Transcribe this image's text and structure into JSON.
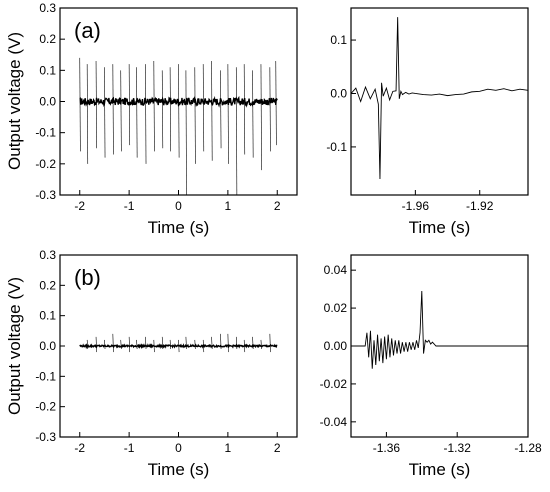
{
  "figure": {
    "ylabel_shared": "Output voltage (V)"
  },
  "chart_data": [
    {
      "id": "a-left",
      "type": "line",
      "panel_label": "(a)",
      "xlabel": "Time (s)",
      "ylabel": "Output voltage (V)",
      "xlim": [
        -2.4,
        2.4
      ],
      "ylim": [
        -0.3,
        0.3
      ],
      "xticks": [
        -2,
        -1,
        0,
        1,
        2
      ],
      "xtick_labels": [
        "-2",
        "-1",
        "0",
        "1",
        "2"
      ],
      "yticks": [
        -0.3,
        -0.2,
        -0.1,
        0.0,
        0.1,
        0.2,
        0.3
      ],
      "ytick_labels": [
        "-0.3",
        "-0.2",
        "-0.1",
        "0.0",
        "0.1",
        "0.2",
        "0.3"
      ],
      "grid": false,
      "series": [
        {
          "baseline_x": [
            -2.0,
            2.0
          ],
          "baseline_noise_amplitude": 0.012,
          "spike_x": [
            -2.0,
            -1.85,
            -1.67,
            -1.5,
            -1.33,
            -1.17,
            -1.0,
            -0.85,
            -0.67,
            -0.5,
            -0.33,
            -0.17,
            0.0,
            0.15,
            0.33,
            0.5,
            0.67,
            0.85,
            1.0,
            1.17,
            1.33,
            1.5,
            1.67,
            1.85,
            1.97
          ],
          "spike_max": [
            0.14,
            0.12,
            0.13,
            0.11,
            0.12,
            0.1,
            0.12,
            0.11,
            0.12,
            0.13,
            0.1,
            0.11,
            0.12,
            0.1,
            0.11,
            0.12,
            0.13,
            0.1,
            0.12,
            0.11,
            0.12,
            0.1,
            0.12,
            0.11,
            0.13
          ],
          "spike_min": [
            -0.16,
            -0.2,
            -0.15,
            -0.18,
            -0.17,
            -0.16,
            -0.14,
            -0.18,
            -0.2,
            -0.16,
            -0.15,
            -0.16,
            -0.18,
            -0.3,
            -0.2,
            -0.16,
            -0.19,
            -0.15,
            -0.2,
            -0.3,
            -0.17,
            -0.18,
            -0.22,
            -0.16,
            -0.14
          ]
        }
      ]
    },
    {
      "id": "a-right",
      "type": "line",
      "xlabel": "Time (s)",
      "xlim": [
        -2.0,
        -1.89
      ],
      "ylim": [
        -0.19,
        0.16
      ],
      "xticks": [
        -1.96,
        -1.92
      ],
      "xtick_labels": [
        "-1.96",
        "-1.92"
      ],
      "yticks": [
        -0.1,
        0.0,
        0.1
      ],
      "ytick_labels": [
        "-0.1",
        "0.0",
        "0.1"
      ],
      "grid": false,
      "series": [
        {
          "x": [
            -2.0,
            -1.997,
            -1.994,
            -1.991,
            -1.988,
            -1.985,
            -1.983,
            -1.982,
            -1.981,
            -1.98,
            -1.978,
            -1.976,
            -1.974,
            -1.972,
            -1.971,
            -1.97,
            -1.969,
            -1.968,
            -1.966,
            -1.964,
            -1.962,
            -1.96,
            -1.955,
            -1.95,
            -1.945,
            -1.94,
            -1.935,
            -1.93,
            -1.925,
            -1.92,
            -1.915,
            -1.91,
            -1.905,
            -1.9,
            -1.895,
            -1.89
          ],
          "y": [
            0.0,
            0.01,
            -0.015,
            0.012,
            -0.01,
            0.008,
            -0.02,
            -0.16,
            0.02,
            -0.005,
            0.01,
            -0.012,
            0.004,
            0.005,
            0.143,
            -0.01,
            0.004,
            -0.002,
            0.002,
            -0.001,
            0.001,
            0.0,
            -0.002,
            -0.003,
            -0.001,
            -0.004,
            -0.002,
            -0.001,
            0.003,
            0.004,
            0.008,
            0.006,
            0.009,
            0.005,
            0.008,
            0.006
          ]
        }
      ]
    },
    {
      "id": "b-left",
      "type": "line",
      "panel_label": "(b)",
      "xlabel": "Time (s)",
      "ylabel": "Output voltage (V)",
      "xlim": [
        -2.4,
        2.4
      ],
      "ylim": [
        -0.3,
        0.3
      ],
      "xticks": [
        -2,
        -1,
        0,
        1,
        2
      ],
      "xtick_labels": [
        "-2",
        "-1",
        "0",
        "1",
        "2"
      ],
      "yticks": [
        -0.3,
        -0.2,
        -0.1,
        0.0,
        0.1,
        0.2,
        0.3
      ],
      "ytick_labels": [
        "-0.3",
        "-0.2",
        "-0.1",
        "0.0",
        "0.1",
        "0.2",
        "0.3"
      ],
      "grid": false,
      "series": [
        {
          "baseline_x": [
            -2.0,
            2.0
          ],
          "baseline_noise_amplitude": 0.003,
          "spike_x": [
            -1.85,
            -1.67,
            -1.5,
            -1.33,
            -1.17,
            -1.0,
            -0.85,
            -0.67,
            -0.5,
            -0.33,
            -0.17,
            0.0,
            0.15,
            0.33,
            0.5,
            0.67,
            0.85,
            1.0,
            1.17,
            1.33,
            1.5,
            1.67,
            1.85
          ],
          "spike_max": [
            0.02,
            0.03,
            0.02,
            0.04,
            0.02,
            0.03,
            0.02,
            0.03,
            0.02,
            0.03,
            0.02,
            0.02,
            0.03,
            0.02,
            0.02,
            0.03,
            0.04,
            0.04,
            0.03,
            0.02,
            0.03,
            0.02,
            0.04
          ],
          "spike_min": [
            -0.01,
            -0.02,
            -0.01,
            -0.02,
            -0.01,
            -0.02,
            -0.01,
            -0.01,
            -0.02,
            -0.01,
            -0.01,
            -0.02,
            -0.01,
            -0.01,
            -0.02,
            -0.01,
            -0.01,
            -0.02,
            -0.01,
            -0.02,
            -0.01,
            -0.01,
            -0.02
          ]
        }
      ]
    },
    {
      "id": "b-right",
      "type": "line",
      "xlabel": "Time (s)",
      "xlim": [
        -1.38,
        -1.28
      ],
      "ylim": [
        -0.048,
        0.048
      ],
      "xticks": [
        -1.36,
        -1.32,
        -1.28
      ],
      "xtick_labels": [
        "-1.36",
        "-1.32",
        "-1.28"
      ],
      "yticks": [
        -0.04,
        -0.02,
        0.0,
        0.02,
        0.04
      ],
      "ytick_labels": [
        "-0.04",
        "-0.02",
        "0.00",
        "0.02",
        "0.04"
      ],
      "grid": false,
      "series": [
        {
          "x": [
            -1.38,
            -1.372,
            -1.371,
            -1.37,
            -1.369,
            -1.368,
            -1.367,
            -1.366,
            -1.365,
            -1.364,
            -1.363,
            -1.362,
            -1.361,
            -1.36,
            -1.359,
            -1.358,
            -1.357,
            -1.356,
            -1.355,
            -1.354,
            -1.353,
            -1.352,
            -1.351,
            -1.35,
            -1.349,
            -1.348,
            -1.347,
            -1.346,
            -1.345,
            -1.344,
            -1.343,
            -1.342,
            -1.341,
            -1.34,
            -1.339,
            -1.338,
            -1.337,
            -1.336,
            -1.335,
            -1.334,
            -1.333,
            -1.332,
            -1.33,
            -1.325,
            -1.32,
            -1.31,
            -1.3,
            -1.29,
            -1.28
          ],
          "y": [
            0.0,
            0.0,
            0.007,
            -0.006,
            0.008,
            -0.012,
            0.003,
            -0.01,
            0.006,
            -0.008,
            0.004,
            -0.009,
            0.005,
            -0.007,
            0.006,
            -0.006,
            0.004,
            -0.005,
            0.003,
            -0.004,
            0.003,
            -0.004,
            0.002,
            -0.003,
            0.002,
            -0.003,
            0.002,
            -0.002,
            0.002,
            -0.002,
            0.003,
            -0.001,
            0.007,
            0.029,
            -0.004,
            0.003,
            0.002,
            0.003,
            0.001,
            0.002,
            0.001,
            0.0,
            0.0,
            0.0,
            0.0,
            0.0,
            0.0,
            0.0,
            0.0
          ]
        }
      ]
    }
  ]
}
